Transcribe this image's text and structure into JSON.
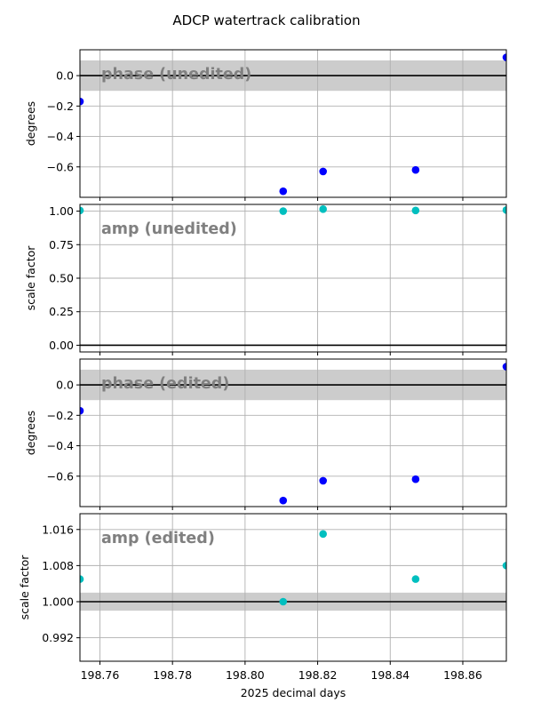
{
  "suptitle": "ADCP watertrack calibration",
  "xlabel": "2025 decimal days",
  "colors": {
    "phase": "#0000ff",
    "amp": "#00bfbf",
    "band": "#cccccc",
    "grid": "#b0b0b0"
  },
  "chart_data": [
    {
      "type": "scatter",
      "title": "phase (unedited)",
      "ylabel": "degrees",
      "xlim": [
        198.7545,
        198.872
      ],
      "ylim": [
        -0.8,
        0.17
      ],
      "xticks": [
        198.76,
        198.78,
        198.8,
        198.82,
        198.84,
        198.86
      ],
      "yticks": [
        -0.6,
        -0.4,
        -0.2,
        0.0
      ],
      "ytick_labels": [
        "−0.6",
        "−0.4",
        "−0.2",
        "0.0"
      ],
      "hline": 0.0,
      "band": [
        -0.1,
        0.1
      ],
      "color": "phase",
      "x": [
        198.7545,
        198.8105,
        198.8215,
        198.847,
        198.872
      ],
      "y": [
        -0.17,
        -0.76,
        -0.63,
        -0.62,
        0.12
      ]
    },
    {
      "type": "scatter",
      "title": "amp (unedited)",
      "ylabel": "scale factor",
      "xlim": [
        198.7545,
        198.872
      ],
      "ylim": [
        -0.05,
        1.05
      ],
      "xticks": [
        198.76,
        198.78,
        198.8,
        198.82,
        198.84,
        198.86
      ],
      "yticks": [
        0.0,
        0.25,
        0.5,
        0.75,
        1.0
      ],
      "ytick_labels": [
        "0.00",
        "0.25",
        "0.50",
        "0.75",
        "1.00"
      ],
      "hline": 0.0,
      "band": null,
      "color": "amp",
      "x": [
        198.7545,
        198.8105,
        198.8215,
        198.847,
        198.872
      ],
      "y": [
        1.005,
        1.0,
        1.015,
        1.005,
        1.008
      ]
    },
    {
      "type": "scatter",
      "title": "phase (edited)",
      "ylabel": "degrees",
      "xlim": [
        198.7545,
        198.872
      ],
      "ylim": [
        -0.8,
        0.17
      ],
      "xticks": [
        198.76,
        198.78,
        198.8,
        198.82,
        198.84,
        198.86
      ],
      "yticks": [
        -0.6,
        -0.4,
        -0.2,
        0.0
      ],
      "ytick_labels": [
        "−0.6",
        "−0.4",
        "−0.2",
        "0.0"
      ],
      "hline": 0.0,
      "band": [
        -0.1,
        0.1
      ],
      "color": "phase",
      "x": [
        198.7545,
        198.8105,
        198.8215,
        198.847,
        198.872
      ],
      "y": [
        -0.17,
        -0.76,
        -0.63,
        -0.62,
        0.12
      ]
    },
    {
      "type": "scatter",
      "title": "amp (edited)",
      "ylabel": "scale factor",
      "xlim": [
        198.7545,
        198.872
      ],
      "ylim": [
        0.9868,
        1.0195
      ],
      "xticks": [
        198.76,
        198.78,
        198.8,
        198.82,
        198.84,
        198.86
      ],
      "xtick_labels": [
        "198.76",
        "198.78",
        "198.80",
        "198.82",
        "198.84",
        "198.86"
      ],
      "yticks": [
        0.992,
        1.0,
        1.008,
        1.016
      ],
      "ytick_labels": [
        "0.992",
        "1.000",
        "1.008",
        "1.016"
      ],
      "hline": 1.0,
      "band": [
        0.998,
        1.002
      ],
      "color": "amp",
      "x": [
        198.7545,
        198.8105,
        198.8215,
        198.847,
        198.872
      ],
      "y": [
        1.005,
        1.0,
        1.015,
        1.005,
        1.008
      ]
    }
  ]
}
